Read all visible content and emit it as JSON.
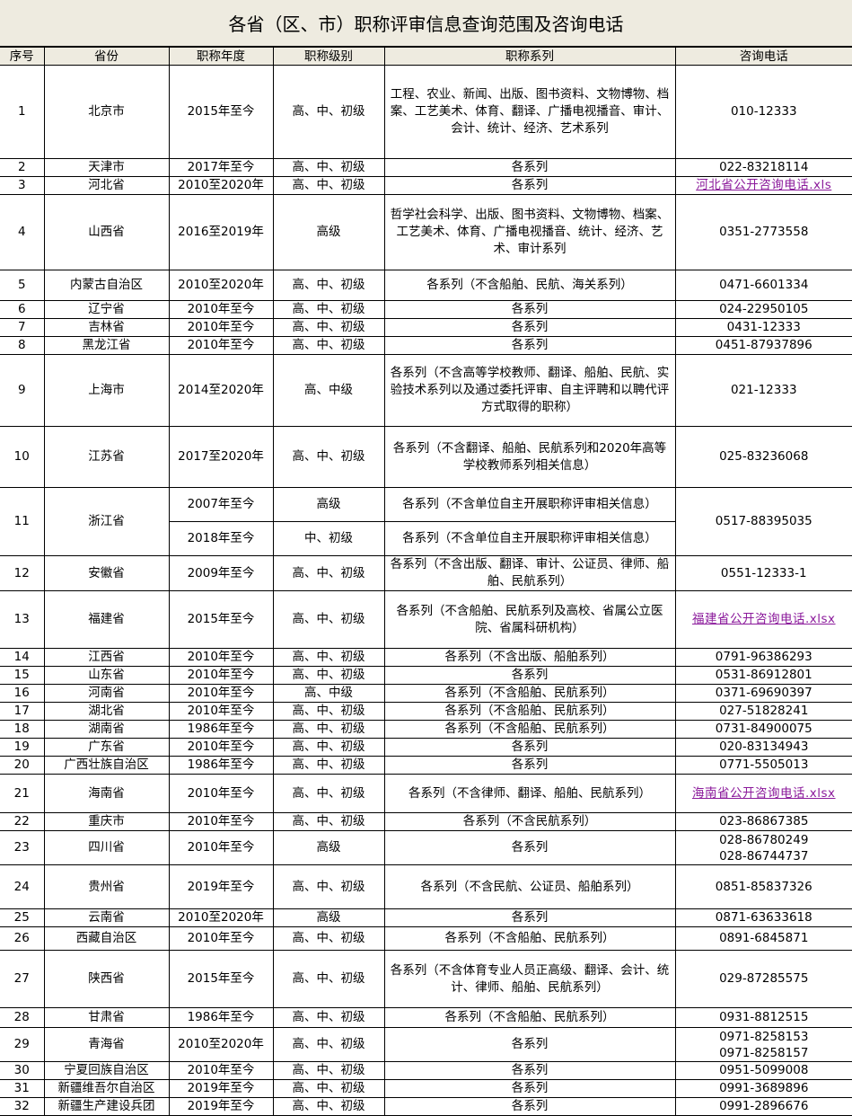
{
  "title": "各省（区、市）职称评审信息查询范围及咨询电话",
  "link_color": "#8b1a9b",
  "header_bg": "#eeebe0",
  "columns": [
    "序号",
    "省份",
    "职称年度",
    "职称级别",
    "职称系列",
    "咨询电话"
  ],
  "rows": [
    {
      "no": "1",
      "province": "北京市",
      "year": "2015年至今",
      "level": "高、中、初级",
      "series": "工程、农业、新闻、出版、图书资料、文物博物、档案、工艺美术、体育、翻译、广播电视播音、审计、会计、统计、经济、艺术系列",
      "phone": [
        "010-12333"
      ]
    },
    {
      "no": "2",
      "province": "天津市",
      "year": "2017年至今",
      "level": "高、中、初级",
      "series": "各系列",
      "phone": [
        "022-83218114"
      ]
    },
    {
      "no": "3",
      "province": "河北省",
      "year": "2010至2020年",
      "level": "高、中、初级",
      "series": "各系列",
      "link": "河北省公开咨询电话.xls"
    },
    {
      "no": "4",
      "province": "山西省",
      "year": "2016至2019年",
      "level": "高级",
      "series": "哲学社会科学、出版、图书资料、文物博物、档案、工艺美术、体育、广播电视播音、统计、经济、艺术、审计系列",
      "phone": [
        "0351-2773558"
      ]
    },
    {
      "no": "5",
      "province": "内蒙古自治区",
      "year": "2010至2020年",
      "level": "高、中、初级",
      "series": "各系列（不含船舶、民航、海关系列）",
      "phone": [
        "0471-6601334"
      ]
    },
    {
      "no": "6",
      "province": "辽宁省",
      "year": "2010年至今",
      "level": "高、中、初级",
      "series": "各系列",
      "phone": [
        "024-22950105"
      ]
    },
    {
      "no": "7",
      "province": "吉林省",
      "year": "2010年至今",
      "level": "高、中、初级",
      "series": "各系列",
      "phone": [
        "0431-12333"
      ]
    },
    {
      "no": "8",
      "province": "黑龙江省",
      "year": "2010年至今",
      "level": "高、中、初级",
      "series": "各系列",
      "phone": [
        "0451-87937896"
      ]
    },
    {
      "no": "9",
      "province": "上海市",
      "year": "2014至2020年",
      "level": "高、中级",
      "series": "各系列（不含高等学校教师、翻译、船舶、民航、实验技术系列以及通过委托评审、自主评聘和以聘代评方式取得的职称）",
      "phone": [
        "021-12333"
      ]
    },
    {
      "no": "10",
      "province": "江苏省",
      "year": "2017至2020年",
      "level": "高、中、初级",
      "series": "各系列（不含翻译、船舶、民航系列和2020年高等学校教师系列相关信息）",
      "phone": [
        "025-83236068"
      ]
    },
    {
      "no": "11",
      "province": "浙江省",
      "sub": [
        {
          "year": "2007年至今",
          "level": "高级",
          "series": "各系列（不含单位自主开展职称评审相关信息）"
        },
        {
          "year": "2018年至今",
          "level": "中、初级",
          "series": "各系列（不含单位自主开展职称评审相关信息）"
        }
      ],
      "phone": [
        "0517-88395035"
      ]
    },
    {
      "no": "12",
      "province": "安徽省",
      "year": "2009年至今",
      "level": "高、中、初级",
      "series": "各系列（不含出版、翻译、审计、公证员、律师、船舶、民航系列）",
      "phone": [
        "0551-12333-1"
      ]
    },
    {
      "no": "13",
      "province": "福建省",
      "year": "2015年至今",
      "level": "高、中、初级",
      "series": "各系列（不含船舶、民航系列及高校、省属公立医院、省属科研机构）",
      "link": "福建省公开咨询电话.xlsx"
    },
    {
      "no": "14",
      "province": "江西省",
      "year": "2010年至今",
      "level": "高、中、初级",
      "series": "各系列（不含出版、船舶系列）",
      "phone": [
        "0791-96386293"
      ]
    },
    {
      "no": "15",
      "province": "山东省",
      "year": "2010年至今",
      "level": "高、中、初级",
      "series": "各系列",
      "phone": [
        "0531-86912801"
      ]
    },
    {
      "no": "16",
      "province": "河南省",
      "year": "2010年至今",
      "level": "高、中级",
      "series": "各系列（不含船舶、民航系列）",
      "phone": [
        "0371-69690397"
      ]
    },
    {
      "no": "17",
      "province": "湖北省",
      "year": "2010年至今",
      "level": "高、中、初级",
      "series": "各系列（不含船舶、民航系列）",
      "phone": [
        "027-51828241"
      ]
    },
    {
      "no": "18",
      "province": "湖南省",
      "year": "1986年至今",
      "level": "高、中、初级",
      "series": "各系列（不含船舶、民航系列）",
      "phone": [
        "0731-84900075"
      ]
    },
    {
      "no": "19",
      "province": "广东省",
      "year": "2010年至今",
      "level": "高、中、初级",
      "series": "各系列",
      "phone": [
        "020-83134943"
      ]
    },
    {
      "no": "20",
      "province": "广西壮族自治区",
      "year": "1986年至今",
      "level": "高、中、初级",
      "series": "各系列",
      "phone": [
        "0771-5505013"
      ]
    },
    {
      "no": "21",
      "province": "海南省",
      "year": "2010年至今",
      "level": "高、中、初级",
      "series": "各系列（不含律师、翻译、船舶、民航系列）",
      "link": "海南省公开咨询电话.xlsx"
    },
    {
      "no": "22",
      "province": "重庆市",
      "year": "2010年至今",
      "level": "高、中、初级",
      "series": "各系列（不含民航系列）",
      "phone": [
        "023-86867385"
      ]
    },
    {
      "no": "23",
      "province": "四川省",
      "year": "2010年至今",
      "level": "高级",
      "series": "各系列",
      "phone": [
        "028-86780249",
        "028-86744737"
      ]
    },
    {
      "no": "24",
      "province": "贵州省",
      "year": "2019年至今",
      "level": "高、中、初级",
      "series": "各系列（不含民航、公证员、船舶系列）",
      "phone": [
        "0851-85837326"
      ]
    },
    {
      "no": "25",
      "province": "云南省",
      "year": "2010至2020年",
      "level": "高级",
      "series": "各系列",
      "phone": [
        "0871-63633618"
      ]
    },
    {
      "no": "26",
      "province": "西藏自治区",
      "year": "2010年至今",
      "level": "高、中、初级",
      "series": "各系列（不含船舶、民航系列）",
      "phone": [
        "0891-6845871"
      ]
    },
    {
      "no": "27",
      "province": "陕西省",
      "year": "2015年至今",
      "level": "高、中、初级",
      "series": "各系列（不含体育专业人员正高级、翻译、会计、统计、律师、船舶、民航系列）",
      "phone": [
        "029-87285575"
      ]
    },
    {
      "no": "28",
      "province": "甘肃省",
      "year": "1986年至今",
      "level": "高、中、初级",
      "series": "各系列（不含船舶、民航系列）",
      "phone": [
        "0931-8812515"
      ]
    },
    {
      "no": "29",
      "province": "青海省",
      "year": "2010至2020年",
      "level": "高、中、初级",
      "series": "各系列",
      "phone": [
        "0971-8258153",
        "0971-8258157"
      ]
    },
    {
      "no": "30",
      "province": "宁夏回族自治区",
      "year": "2010年至今",
      "level": "高、中、初级",
      "series": "各系列",
      "phone": [
        "0951-5099008"
      ]
    },
    {
      "no": "31",
      "province": "新疆维吾尔自治区",
      "year": "2019年至今",
      "level": "高、中、初级",
      "series": "各系列",
      "phone": [
        "0991-3689896"
      ]
    },
    {
      "no": "32",
      "province": "新疆生产建设兵团",
      "year": "2019年至今",
      "level": "高、中、初级",
      "series": "各系列",
      "phone": [
        "0991-2896676"
      ]
    }
  ]
}
